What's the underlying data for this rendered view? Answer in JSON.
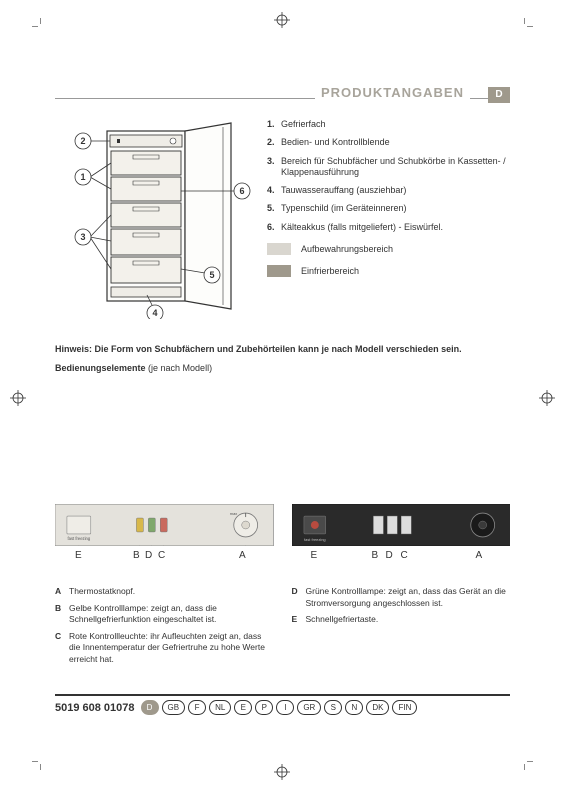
{
  "header": {
    "title": "PRODUKTANGABEN",
    "badge": "D",
    "title_color": "#a8a49b",
    "badge_bg": "#9f998c"
  },
  "parts": [
    {
      "num": "1.",
      "text": "Gefrierfach"
    },
    {
      "num": "2.",
      "text": "Bedien- und Kontrollblende"
    },
    {
      "num": "3.",
      "text": "Bereich für Schubfächer und Schubkörbe in Kassetten- / Klappenausführung"
    },
    {
      "num": "4.",
      "text": "Tauwasserauffang (ausziehbar)"
    },
    {
      "num": "5.",
      "text": "Typenschild (im Geräteinneren)"
    },
    {
      "num": "6.",
      "text": "Kälteakkus (falls mitgeliefert) - Eiswürfel."
    }
  ],
  "legend": [
    {
      "color": "#d9d6cf",
      "label": "Aufbewahrungsbereich"
    },
    {
      "color": "#9f998c",
      "label": "Einfrierbereich"
    }
  ],
  "callouts": [
    "1",
    "2",
    "3",
    "4",
    "5",
    "6"
  ],
  "hinweis": {
    "bold": "Hinweis: Die Form von Schubfächern und Zubehörteilen kann je nach Modell verschieden sein.",
    "line2_bold": "Bedienungselemente",
    "line2_rest": " (je nach Modell)"
  },
  "panel_letters": {
    "E": "E",
    "B": "B",
    "D": "D",
    "C": "C",
    "A": "A"
  },
  "panel1": {
    "bg": "#e4e2dc",
    "fast_freezing_text": "fast freezing",
    "max_text": "max"
  },
  "panel2": {
    "bg": "#2a2a2a",
    "fast_freezing_text": "fast freezing"
  },
  "descriptions": {
    "left": [
      {
        "k": "A",
        "t": "Thermostatknopf."
      },
      {
        "k": "B",
        "t": "Gelbe Kontrolllampe: zeigt an, dass die Schnellgefrierfunktion eingeschaltet ist."
      },
      {
        "k": "C",
        "t": "Rote Kontrollleuchte: ihr Aufleuchten zeigt an, dass die Innentemperatur der Gefriertruhe zu hohe Werte erreicht hat."
      }
    ],
    "right": [
      {
        "k": "D",
        "t": "Grüne Kontrolllampe: zeigt an, dass das Gerät an die Stromversorgung angeschlossen ist."
      },
      {
        "k": "E",
        "t": "Schnellgefriertaste."
      }
    ]
  },
  "footer": {
    "doc_number": "5019 608 01078",
    "langs": [
      "D",
      "GB",
      "F",
      "NL",
      "E",
      "P",
      "I",
      "GR",
      "S",
      "N",
      "DK",
      "FIN"
    ],
    "active_lang": "D"
  },
  "diagram": {
    "stroke": "#333333",
    "label_fontsize": 9
  }
}
